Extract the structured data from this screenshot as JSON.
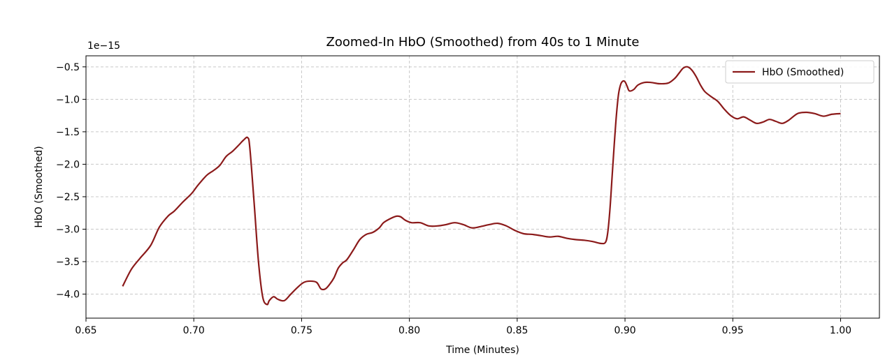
{
  "chart_data": {
    "type": "line",
    "title": "Zoomed-In HbO (Smoothed) from 40s to 1 Minute",
    "xlabel": "Time (Minutes)",
    "ylabel": "HbO (Smoothed)",
    "offset_text": "1e−15",
    "xlim": [
      0.65,
      1.018
    ],
    "ylim": [
      -4.37,
      -0.33
    ],
    "xticks": [
      0.65,
      0.7,
      0.75,
      0.8,
      0.85,
      0.9,
      0.95,
      1.0
    ],
    "xtick_labels": [
      "0.65",
      "0.70",
      "0.75",
      "0.80",
      "0.85",
      "0.90",
      "0.95",
      "1.00"
    ],
    "yticks": [
      -4.0,
      -3.5,
      -3.0,
      -2.5,
      -2.0,
      -1.5,
      -1.0,
      -0.5
    ],
    "ytick_labels": [
      "−4.0",
      "−3.5",
      "−3.0",
      "−2.5",
      "−2.0",
      "−1.5",
      "−1.0",
      "−0.5"
    ],
    "grid": true,
    "legend_position": "upper-right",
    "series": [
      {
        "name": "HbO (Smoothed)",
        "color": "#8b1a1a",
        "x": [
          0.667,
          0.671,
          0.675,
          0.68,
          0.684,
          0.688,
          0.691,
          0.695,
          0.699,
          0.702,
          0.706,
          0.709,
          0.712,
          0.715,
          0.718,
          0.721,
          0.723,
          0.725,
          0.726,
          0.728,
          0.73,
          0.732,
          0.734,
          0.735,
          0.737,
          0.739,
          0.742,
          0.745,
          0.748,
          0.751,
          0.754,
          0.757,
          0.759,
          0.761,
          0.763,
          0.765,
          0.767,
          0.769,
          0.771,
          0.774,
          0.777,
          0.78,
          0.783,
          0.786,
          0.788,
          0.791,
          0.794,
          0.796,
          0.798,
          0.801,
          0.805,
          0.809,
          0.813,
          0.817,
          0.821,
          0.825,
          0.829,
          0.833,
          0.837,
          0.841,
          0.845,
          0.849,
          0.853,
          0.857,
          0.861,
          0.865,
          0.869,
          0.873,
          0.877,
          0.881,
          0.885,
          0.889,
          0.891,
          0.892,
          0.893,
          0.894,
          0.895,
          0.896,
          0.897,
          0.898,
          0.899,
          0.9,
          0.901,
          0.902,
          0.904,
          0.906,
          0.909,
          0.912,
          0.916,
          0.92,
          0.923,
          0.925,
          0.927,
          0.929,
          0.931,
          0.933,
          0.935,
          0.937,
          0.94,
          0.943,
          0.946,
          0.949,
          0.952,
          0.955,
          0.958,
          0.961,
          0.964,
          0.967,
          0.97,
          0.973,
          0.976,
          0.98,
          0.984,
          0.988,
          0.992,
          0.996,
          1.0
        ],
        "y": [
          -3.88,
          -3.62,
          -3.45,
          -3.25,
          -2.97,
          -2.8,
          -2.72,
          -2.58,
          -2.45,
          -2.32,
          -2.17,
          -2.1,
          -2.02,
          -1.88,
          -1.8,
          -1.7,
          -1.63,
          -1.59,
          -1.75,
          -2.6,
          -3.5,
          -4.05,
          -4.16,
          -4.1,
          -4.04,
          -4.08,
          -4.1,
          -4.0,
          -3.9,
          -3.82,
          -3.8,
          -3.82,
          -3.92,
          -3.92,
          -3.85,
          -3.75,
          -3.6,
          -3.52,
          -3.47,
          -3.32,
          -3.16,
          -3.08,
          -3.05,
          -2.98,
          -2.9,
          -2.84,
          -2.8,
          -2.81,
          -2.86,
          -2.9,
          -2.9,
          -2.95,
          -2.95,
          -2.93,
          -2.9,
          -2.93,
          -2.98,
          -2.96,
          -2.93,
          -2.91,
          -2.95,
          -3.02,
          -3.07,
          -3.08,
          -3.1,
          -3.12,
          -3.11,
          -3.14,
          -3.16,
          -3.17,
          -3.19,
          -3.22,
          -3.2,
          -3.05,
          -2.7,
          -2.2,
          -1.7,
          -1.25,
          -0.92,
          -0.77,
          -0.72,
          -0.73,
          -0.8,
          -0.87,
          -0.85,
          -0.78,
          -0.74,
          -0.74,
          -0.76,
          -0.75,
          -0.68,
          -0.6,
          -0.52,
          -0.5,
          -0.55,
          -0.65,
          -0.78,
          -0.88,
          -0.96,
          -1.03,
          -1.15,
          -1.25,
          -1.3,
          -1.27,
          -1.32,
          -1.37,
          -1.35,
          -1.31,
          -1.34,
          -1.37,
          -1.32,
          -1.22,
          -1.2,
          -1.22,
          -1.26,
          -1.23,
          -1.22
        ]
      }
    ]
  }
}
